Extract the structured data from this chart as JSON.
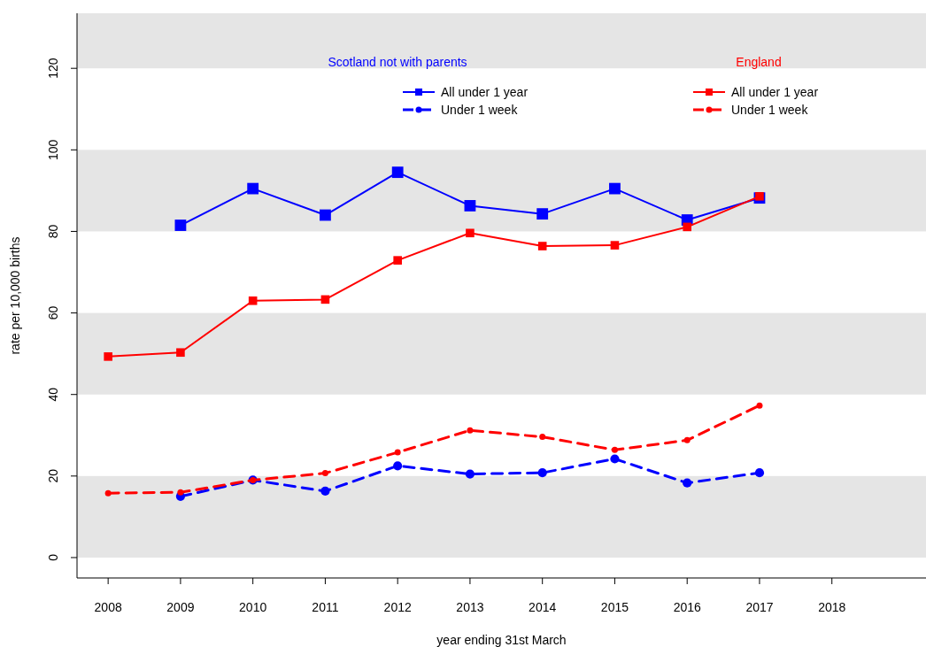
{
  "chart_data": {
    "type": "line",
    "xlabel": "year ending 31st March",
    "ylabel": "rate per 10,000 births",
    "x": [
      2008,
      2009,
      2010,
      2011,
      2012,
      2013,
      2014,
      2015,
      2016,
      2017
    ],
    "xlim": [
      2007.57,
      2019.3
    ],
    "xticks": [
      2008,
      2009,
      2010,
      2011,
      2012,
      2013,
      2014,
      2015,
      2016,
      2017,
      2018
    ],
    "ylim": [
      -5,
      133.5
    ],
    "yticks": [
      0,
      20,
      40,
      60,
      80,
      100,
      120
    ],
    "annotations": [
      "Scotland not with parents",
      "England"
    ],
    "legend": "top right",
    "bands": [
      {
        "axis": "y",
        "from": 0,
        "to": 20,
        "color": "#e5e5e5"
      },
      {
        "axis": "y",
        "from": 40,
        "to": 60,
        "color": "#e5e5e5"
      },
      {
        "axis": "y",
        "from": 80,
        "to": 100,
        "color": "#e5e5e5"
      },
      {
        "axis": "y",
        "from": 120,
        "to": 133.5,
        "color": "#e5e5e5"
      }
    ],
    "series": [
      {
        "name": "All under 1 year",
        "color": "#0000ff",
        "marker": "square",
        "line_style": "solid",
        "values": [
          null,
          81.5,
          90.5,
          84,
          94.5,
          86.3,
          84.3,
          90.5,
          82.8,
          88.2
        ]
      },
      {
        "name": "Under 1 week",
        "color": "#0000ff",
        "marker": "circle",
        "line_style": "dashed",
        "values": [
          null,
          15,
          19,
          16.3,
          22.5,
          20.5,
          20.8,
          24.2,
          18.3,
          20.8
        ]
      },
      {
        "name": "All under 1 year",
        "color": "#ff0000",
        "marker": "square",
        "line_style": "solid",
        "values": [
          49.3,
          50.3,
          63,
          63.3,
          72.9,
          79.6,
          76.4,
          76.6,
          81.1,
          88.6
        ]
      },
      {
        "name": "Under 1 week",
        "color": "#ff0000",
        "marker": "circle",
        "line_style": "dashed",
        "values": [
          15.8,
          16,
          19,
          20.7,
          25.8,
          31.2,
          29.6,
          26.4,
          28.8,
          37.3
        ]
      }
    ]
  }
}
